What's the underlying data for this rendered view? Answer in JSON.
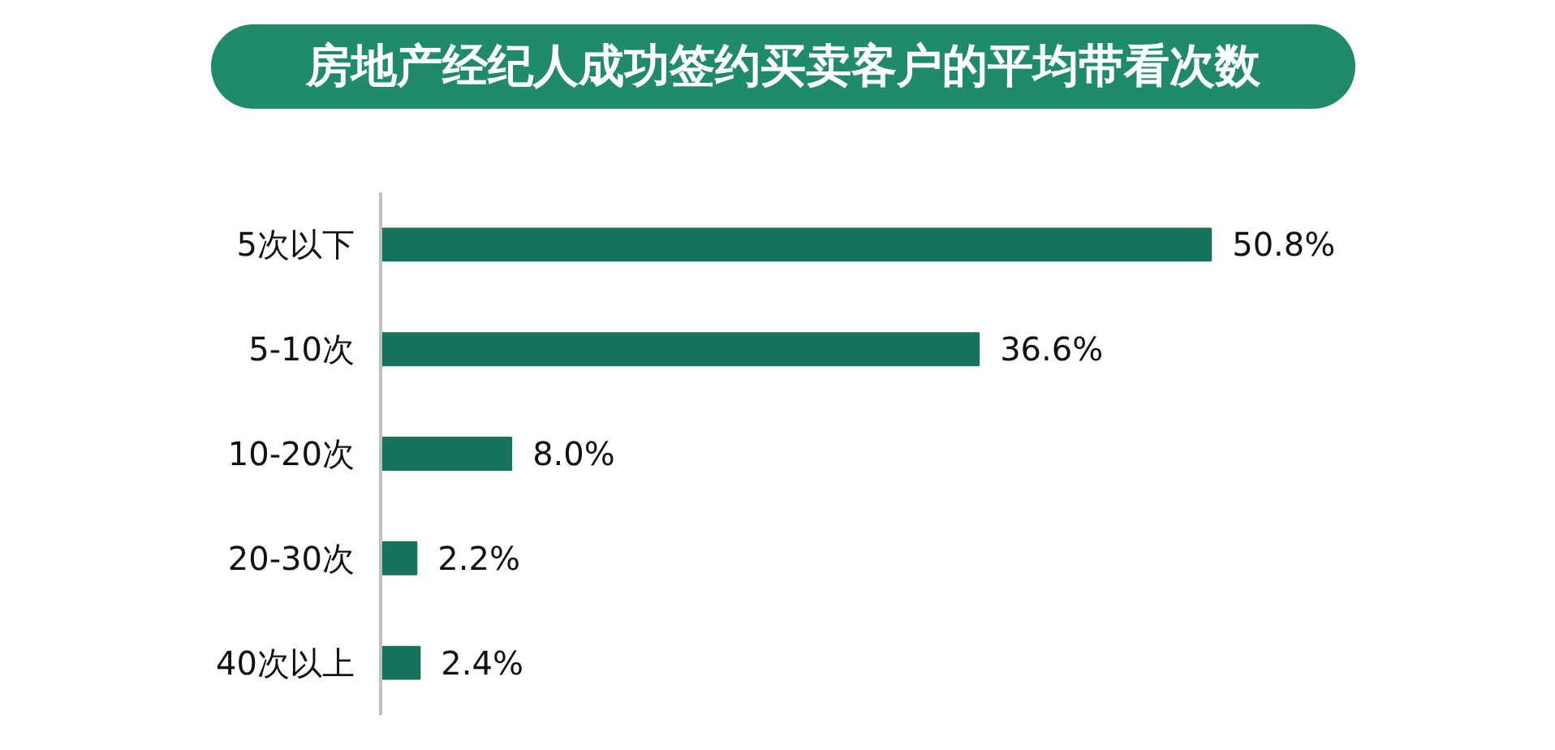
{
  "chart_data": {
    "type": "bar",
    "orientation": "horizontal",
    "title": "房地产经纪人成功签约买卖客户的平均带看次数",
    "categories": [
      "5次以下",
      "5-10次",
      "10-20次",
      "20-30次",
      "40次以上"
    ],
    "values": [
      50.8,
      36.6,
      8.0,
      2.2,
      2.4
    ],
    "value_labels": [
      "50.8%",
      "36.6%",
      "8.0%",
      "2.2%",
      "2.4%"
    ],
    "color": "#17735c",
    "tick_labels": "y",
    "grid": false
  }
}
